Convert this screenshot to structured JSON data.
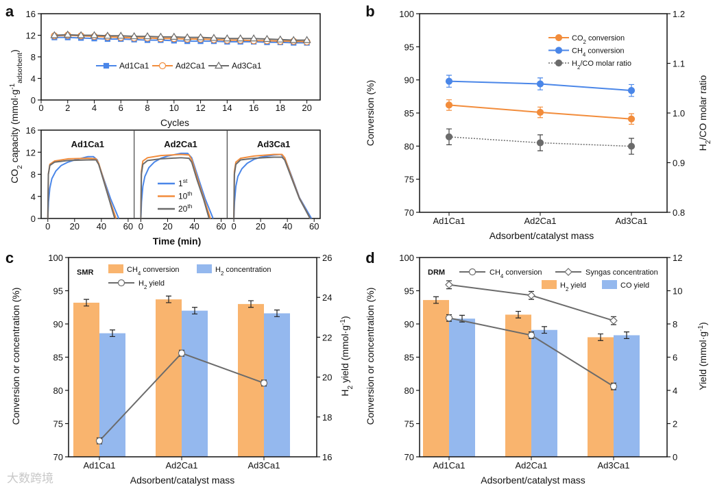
{
  "watermark": "大数跨境",
  "colors": {
    "blue": "#4a86e8",
    "orange": "#f28c3b",
    "gray": "#6b6b6b",
    "bar_orange": "#f9b46e",
    "bar_blue": "#94b8ee"
  },
  "chart_data": [
    {
      "id": "a_top",
      "panel_label": "a",
      "type": "line",
      "xlabel": "Cycles",
      "xlim": [
        0,
        21
      ],
      "ylim": [
        0,
        16
      ],
      "xticks": [
        "0",
        "2",
        "4",
        "6",
        "8",
        "10",
        "12",
        "14",
        "16",
        "18",
        "20"
      ],
      "yticks": [
        "0",
        "4",
        "8",
        "12",
        "16"
      ],
      "ylabel": {
        "main": "CO",
        "sub1": "2",
        "mid": " capacity (mmol·g",
        "sup": "-1",
        "sub2": "adsorbent",
        "end": ")"
      },
      "legend_position": "center",
      "x": [
        1,
        2,
        3,
        4,
        5,
        6,
        7,
        8,
        9,
        10,
        11,
        12,
        13,
        14,
        15,
        16,
        17,
        18,
        19,
        20
      ],
      "series": [
        {
          "name": "Ad1Ca1",
          "color": "#4a86e8",
          "marker": "square",
          "values": [
            11.6,
            11.6,
            11.5,
            11.4,
            11.3,
            11.3,
            11.2,
            11.1,
            11.1,
            11.0,
            10.9,
            10.9,
            10.9,
            10.8,
            10.8,
            10.8,
            10.7,
            10.7,
            10.6,
            10.6
          ]
        },
        {
          "name": "Ad2Ca1",
          "color": "#f28c3b",
          "marker": "circle",
          "values": [
            11.9,
            12.0,
            11.9,
            11.8,
            11.7,
            11.6,
            11.5,
            11.5,
            11.4,
            11.4,
            11.3,
            11.3,
            11.2,
            11.1,
            11.1,
            11.0,
            11.0,
            10.9,
            10.9,
            10.8
          ]
        },
        {
          "name": "Ad3Ca1",
          "color": "#6b6b6b",
          "marker": "triangle",
          "values": [
            12.0,
            12.1,
            12.0,
            12.0,
            11.9,
            11.9,
            11.8,
            11.8,
            11.7,
            11.7,
            11.6,
            11.6,
            11.5,
            11.4,
            11.4,
            11.4,
            11.3,
            11.2,
            11.1,
            11.1
          ]
        }
      ]
    },
    {
      "id": "a_bottom",
      "type": "line",
      "xlabel": "Time (min)",
      "xlim": [
        -5,
        64.5
      ],
      "ylim": [
        0,
        16
      ],
      "xticks": [
        "0",
        "20",
        "40",
        "60"
      ],
      "yticks": [
        "0",
        "4",
        "8",
        "12",
        "16"
      ],
      "legend": [
        {
          "name": "1",
          "sup": "st",
          "color": "#4a86e8"
        },
        {
          "name": "10",
          "sup": "th",
          "color": "#f28c3b"
        },
        {
          "name": "20",
          "sup": "th",
          "color": "#6b6b6b"
        }
      ],
      "subplots": [
        {
          "title": "Ad1Ca1",
          "curves": [
            [
              [
                0,
                0
              ],
              [
                0.5,
                3
              ],
              [
                1.5,
                5.5
              ],
              [
                3,
                7.2
              ],
              [
                6,
                8.6
              ],
              [
                10,
                9.6
              ],
              [
                15,
                10.2
              ],
              [
                20,
                10.6
              ],
              [
                30,
                11.2
              ],
              [
                34,
                11.2
              ],
              [
                37,
                10.6
              ],
              [
                42,
                7
              ],
              [
                47,
                3.5
              ],
              [
                53,
                0
              ]
            ],
            [
              [
                0,
                0
              ],
              [
                0.4,
                8
              ],
              [
                1.5,
                9.8
              ],
              [
                5,
                10.4
              ],
              [
                15,
                10.8
              ],
              [
                30,
                10.9
              ],
              [
                36,
                10.8
              ],
              [
                38,
                10
              ],
              [
                42,
                6.8
              ],
              [
                46,
                3.5
              ],
              [
                51,
                0
              ]
            ],
            [
              [
                0,
                0
              ],
              [
                0.4,
                8
              ],
              [
                1.5,
                9.6
              ],
              [
                5,
                10.2
              ],
              [
                15,
                10.5
              ],
              [
                30,
                10.6
              ],
              [
                36,
                10.6
              ],
              [
                38,
                9.8
              ],
              [
                42,
                6.6
              ],
              [
                46,
                3.3
              ],
              [
                50,
                0
              ]
            ]
          ]
        },
        {
          "title": "Ad2Ca1",
          "curves": [
            [
              [
                0,
                0
              ],
              [
                0.5,
                3
              ],
              [
                1.5,
                5.8
              ],
              [
                3,
                7.6
              ],
              [
                6,
                9.2
              ],
              [
                10,
                10.2
              ],
              [
                15,
                10.9
              ],
              [
                20,
                11.3
              ],
              [
                30,
                11.8
              ],
              [
                35,
                11.8
              ],
              [
                38,
                11
              ],
              [
                43,
                7.3
              ],
              [
                48,
                3.6
              ],
              [
                54,
                0
              ]
            ],
            [
              [
                0,
                0
              ],
              [
                0.4,
                8.5
              ],
              [
                1.5,
                10.4
              ],
              [
                5,
                11
              ],
              [
                15,
                11.4
              ],
              [
                30,
                11.6
              ],
              [
                36,
                11.5
              ],
              [
                38,
                10.7
              ],
              [
                42,
                7.5
              ],
              [
                47,
                3.7
              ],
              [
                52,
                0
              ]
            ],
            [
              [
                0,
                0
              ],
              [
                0.4,
                8
              ],
              [
                1.5,
                9.8
              ],
              [
                5,
                10.5
              ],
              [
                15,
                10.8
              ],
              [
                30,
                11
              ],
              [
                36,
                10.9
              ],
              [
                38,
                10.2
              ],
              [
                42,
                7
              ],
              [
                47,
                3.4
              ],
              [
                51,
                0
              ]
            ]
          ]
        },
        {
          "title": "Ad3Ca1",
          "curves": [
            [
              [
                0,
                0
              ],
              [
                0.5,
                3
              ],
              [
                1.5,
                5.8
              ],
              [
                3,
                7.6
              ],
              [
                6,
                9.0
              ],
              [
                10,
                10.0
              ],
              [
                15,
                10.7
              ],
              [
                20,
                11.1
              ],
              [
                30,
                11.5
              ],
              [
                35,
                11.6
              ],
              [
                38,
                11
              ],
              [
                43,
                7.8
              ],
              [
                49,
                3.8
              ],
              [
                58,
                0
              ]
            ],
            [
              [
                0,
                0
              ],
              [
                0.4,
                8.5
              ],
              [
                1.5,
                10.2
              ],
              [
                5,
                10.9
              ],
              [
                15,
                11.3
              ],
              [
                30,
                11.6
              ],
              [
                36,
                11.6
              ],
              [
                38,
                11
              ],
              [
                43,
                7.6
              ],
              [
                49,
                3.7
              ],
              [
                57,
                0
              ]
            ],
            [
              [
                0,
                0
              ],
              [
                0.4,
                8
              ],
              [
                1.5,
                9.8
              ],
              [
                5,
                10.6
              ],
              [
                15,
                10.9
              ],
              [
                30,
                11.1
              ],
              [
                36,
                11.1
              ],
              [
                38,
                10.6
              ],
              [
                43,
                7.4
              ],
              [
                49,
                3.6
              ],
              [
                57,
                0
              ]
            ]
          ]
        }
      ]
    },
    {
      "id": "b",
      "panel_label": "b",
      "type": "line",
      "categories": [
        "Ad1Ca1",
        "Ad2Ca1",
        "Ad3Ca1"
      ],
      "xlabel": "Adsorbent/catalyst mass",
      "ylabel": "Conversion (%)",
      "ylabel_right": {
        "main": "H",
        "sub": "2",
        "end": "/CO molar ratio"
      },
      "ylim": [
        70,
        100
      ],
      "ylim_right": [
        0.8,
        1.2
      ],
      "yticks": [
        "70",
        "75",
        "80",
        "85",
        "90",
        "95",
        "100"
      ],
      "yticks_right": [
        "0.8",
        "0.9",
        "1.0",
        "1.1",
        "1.2"
      ],
      "series": [
        {
          "name": "CO",
          "sub": "2",
          "suffix": " conversion",
          "color": "#f28c3b",
          "axis": "left",
          "style": "solid",
          "values": [
            86.2,
            85.1,
            84.1
          ],
          "err": [
            0.8,
            0.8,
            0.8
          ]
        },
        {
          "name": "CH",
          "sub": "4",
          "suffix": " conversion",
          "color": "#4a86e8",
          "axis": "left",
          "style": "solid",
          "values": [
            89.8,
            89.4,
            88.4
          ],
          "err": [
            0.9,
            0.9,
            0.9
          ]
        },
        {
          "name": "H",
          "sub": "2",
          "suffix": "/CO molar ratio",
          "color": "#6b6b6b",
          "axis": "right",
          "style": "dotted",
          "values": [
            0.952,
            0.94,
            0.933
          ],
          "err": [
            0.016,
            0.016,
            0.016
          ]
        }
      ]
    },
    {
      "id": "c",
      "panel_label": "c",
      "type": "bar",
      "annotation": "SMR",
      "categories": [
        "Ad1Ca1",
        "Ad2Ca1",
        "Ad3Ca1"
      ],
      "xlabel": "Adsorbent/catalyst mass",
      "ylabel": "Conversion or concentration (%)",
      "ylabel_right": {
        "main": "H",
        "sub": "2",
        "mid": " yield (mmol·g",
        "sup": "-1",
        "end": ")"
      },
      "ylim": [
        70,
        100
      ],
      "ylim_right": [
        16,
        26
      ],
      "yticks": [
        "70",
        "75",
        "80",
        "85",
        "90",
        "95",
        "100"
      ],
      "yticks_right": [
        "16",
        "18",
        "20",
        "22",
        "24",
        "26"
      ],
      "bars": [
        {
          "name": "CH",
          "sub": "4",
          "suffix": " conversion",
          "color": "#f9b46e",
          "values": [
            93.2,
            93.7,
            93.0
          ],
          "err": [
            0.5,
            0.5,
            0.5
          ]
        },
        {
          "name": "H",
          "sub": "2",
          "suffix": " concentration",
          "color": "#94b8ee",
          "values": [
            88.6,
            92.0,
            91.6
          ],
          "err": [
            0.5,
            0.5,
            0.5
          ]
        }
      ],
      "lines": [
        {
          "name": "H",
          "sub": "2",
          "suffix": " yield",
          "color": "#6b6b6b",
          "axis": "right",
          "marker": "circle",
          "values": [
            16.8,
            21.2,
            19.7
          ],
          "err": [
            0.15,
            0.15,
            0.15
          ]
        }
      ]
    },
    {
      "id": "d",
      "panel_label": "d",
      "type": "bar",
      "annotation": "DRM",
      "categories": [
        "Ad1Ca1",
        "Ad2Ca1",
        "Ad3Ca1"
      ],
      "xlabel": "Adsorbent/catalyst mass",
      "ylabel": "Conversion or concentration (%)",
      "ylabel_right": {
        "main": "Yield (mmol·g",
        "sup": "-1",
        "end": ")"
      },
      "ylim": [
        70,
        100
      ],
      "ylim_right": [
        0,
        12
      ],
      "yticks": [
        "70",
        "75",
        "80",
        "85",
        "90",
        "95",
        "100"
      ],
      "yticks_right": [
        "0",
        "2",
        "4",
        "6",
        "8",
        "10",
        "12"
      ],
      "bars": [
        {
          "name": "H",
          "sub": "2",
          "suffix": " yield",
          "color": "#f9b46e",
          "axis": "right",
          "values": [
            9.44,
            8.56,
            7.2
          ],
          "err": [
            0.2,
            0.2,
            0.2
          ]
        },
        {
          "name": "CO yield",
          "sub": "",
          "suffix": "",
          "color": "#94b8ee",
          "axis": "right",
          "values": [
            8.32,
            7.64,
            7.32
          ],
          "err": [
            0.2,
            0.2,
            0.2
          ]
        }
      ],
      "lines": [
        {
          "name": "CH",
          "sub": "4",
          "suffix": " conversion",
          "color": "#6b6b6b",
          "axis": "left",
          "marker": "circle",
          "values": [
            90.9,
            88.3,
            80.6
          ],
          "err": [
            0.5,
            0.5,
            0.5
          ]
        },
        {
          "name": "Syngas concentration",
          "sub": "",
          "suffix": "",
          "color": "#6b6b6b",
          "axis": "left",
          "marker": "diamond",
          "values": [
            95.9,
            94.3,
            90.5
          ],
          "err": [
            0.6,
            0.6,
            0.6
          ]
        }
      ]
    }
  ]
}
